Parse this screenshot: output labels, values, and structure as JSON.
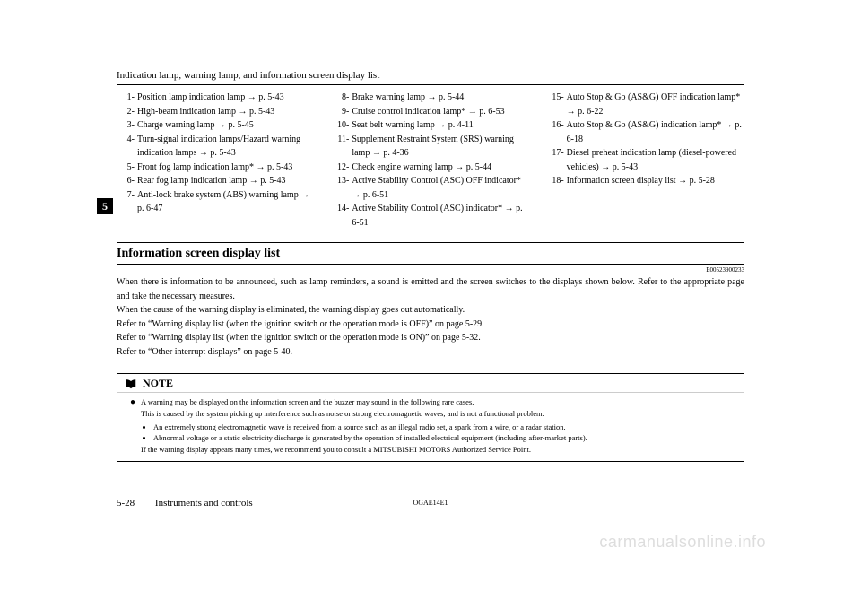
{
  "header": "Indication lamp, warning lamp, and information screen display list",
  "tab": "5",
  "col1": [
    {
      "n": "1-",
      "t": "Position lamp indication lamp → p. 5-43"
    },
    {
      "n": "2-",
      "t": "High-beam indication lamp → p. 5-43"
    },
    {
      "n": "3-",
      "t": "Charge warning lamp → p. 5-45"
    },
    {
      "n": "4-",
      "t": "Turn-signal indication lamps/Hazard warning indication lamps → p. 5-43"
    },
    {
      "n": "5-",
      "t": "Front fog lamp indication lamp* → p. 5-43"
    },
    {
      "n": "6-",
      "t": "Rear fog lamp indication lamp → p. 5-43"
    },
    {
      "n": "7-",
      "t": "Anti-lock brake system (ABS) warning lamp → p. 6-47"
    }
  ],
  "col2": [
    {
      "n": "8-",
      "t": "Brake warning lamp → p. 5-44"
    },
    {
      "n": "9-",
      "t": "Cruise control indication lamp* → p. 6-53"
    },
    {
      "n": "10-",
      "t": "Seat belt warning lamp → p. 4-11"
    },
    {
      "n": "11-",
      "t": "Supplement Restraint System (SRS) warning lamp → p. 4-36"
    },
    {
      "n": "12-",
      "t": "Check engine warning lamp → p. 5-44"
    },
    {
      "n": "13-",
      "t": "Active Stability Control (ASC) OFF indicator* → p. 6-51"
    },
    {
      "n": "14-",
      "t": "Active Stability Control (ASC) indicator* → p. 6-51"
    }
  ],
  "col3": [
    {
      "n": "15-",
      "t": "Auto Stop & Go (AS&G) OFF indication lamp* → p. 6-22"
    },
    {
      "n": "16-",
      "t": "Auto Stop & Go (AS&G) indication lamp* → p. 6-18"
    },
    {
      "n": "17-",
      "t": "Diesel preheat indication lamp (diesel-powered vehicles) → p. 5-43"
    },
    {
      "n": "18-",
      "t": "Information screen display list → p. 5-28"
    }
  ],
  "section_title": "Information screen display list",
  "docno": "E00523900233",
  "body": [
    "When there is information to be announced, such as lamp reminders, a sound is emitted and the screen switches to the displays shown below. Refer to the appropriate page and take the necessary measures.",
    "When the cause of the warning display is eliminated, the warning display goes out automatically.",
    "Refer to “Warning display list (when the ignition switch or the operation mode is OFF)” on page 5-29.",
    "Refer to “Warning display list (when the ignition switch or the operation mode is ON)” on page 5-32.",
    "Refer to “Other interrupt displays” on page 5-40."
  ],
  "note": {
    "label": "NOTE",
    "lead": "A warning may be displayed on the information screen and the buzzer may sound in the following rare cases.",
    "lead2": "This is caused by the system picking up interference such as noise or strong electromagnetic waves, and is not a functional problem.",
    "bullets": [
      "An extremely strong electromagnetic wave is received from a source such as an illegal radio set, a spark from a wire, or a radar station.",
      "Abnormal voltage or a static electricity discharge is generated by the operation of installed electrical equipment (including after-market parts)."
    ],
    "tail": "If the warning display appears many times, we recommend you to consult a MITSUBISHI MOTORS Authorized Service Point."
  },
  "footer": {
    "page": "5-28",
    "chapter": "Instruments and controls",
    "code": "OGAE14E1"
  },
  "watermark": "carmanualsonline.info"
}
